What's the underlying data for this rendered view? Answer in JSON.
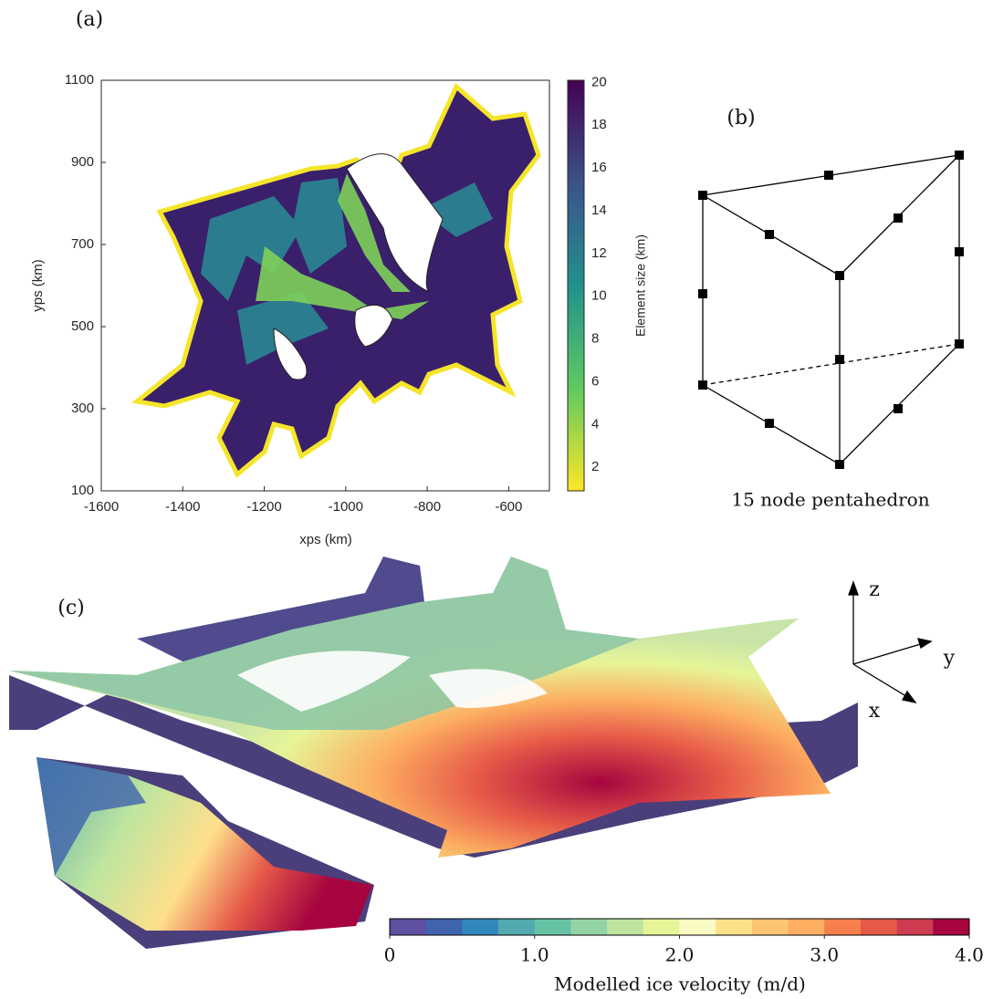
{
  "panel_a": {
    "label": "(a)",
    "xlabel": "xps (km)",
    "ylabel": "yps (km)",
    "xlim": [
      -1600,
      -500
    ],
    "xticks": [
      -1600,
      -1400,
      -1200,
      -1000,
      -800,
      -600
    ],
    "ylim": [
      100,
      1100
    ],
    "yticks": [
      100,
      300,
      500,
      700,
      900,
      1100
    ],
    "colorbar": {
      "label": "Element size (km)",
      "lim": [
        0.9,
        20.1
      ],
      "ticks": [
        2,
        4,
        6,
        8,
        10,
        12,
        14,
        16,
        18,
        20
      ]
    }
  },
  "panel_b": {
    "label": "(b)",
    "caption": "15 node pentahedron"
  },
  "panel_c": {
    "label": "(c)",
    "axes": [
      "z",
      "y",
      "x"
    ],
    "colorbar": {
      "label": "Modelled ice velocity (m/d)",
      "lim": [
        0,
        4
      ],
      "ticks": [
        0,
        {
          "value": 1,
          "label": "1.0"
        },
        {
          "value": 2,
          "label": "2.0"
        },
        {
          "value": 3,
          "label": "3.0"
        },
        {
          "value": 4,
          "label": "4.0"
        }
      ],
      "colors": [
        "#5e4fa2",
        "#3f63ad",
        "#3288bd",
        "#52a9ae",
        "#66c2a5",
        "#93d3a4",
        "#bfe5a0",
        "#e6f598",
        "#fafbc4",
        "#fee08b",
        "#fdc472",
        "#fdae61",
        "#f67f4e",
        "#e65848",
        "#ce3a4f",
        "#a6053f"
      ]
    }
  }
}
